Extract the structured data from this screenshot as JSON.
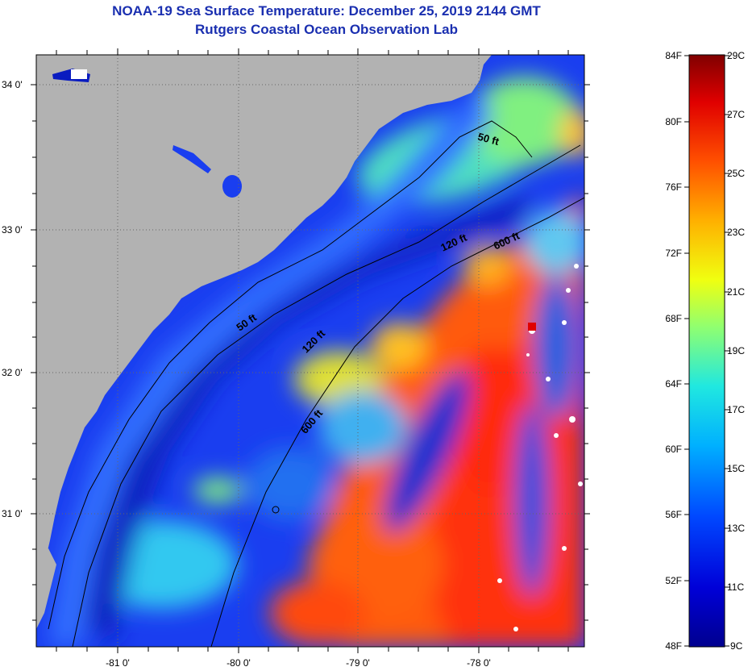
{
  "header": {
    "title": "NOAA-19 Sea Surface Temperature:  December 25, 2019 2144 GMT",
    "subtitle": "Rutgers Coastal Ocean Observation Lab"
  },
  "map": {
    "lat_labels": [
      "34 0'",
      "33 0'",
      "32 0'",
      "31 0'"
    ],
    "lon_labels": [
      "-81 0'",
      "-80 0'",
      "-79 0'",
      "-78 0'"
    ],
    "contours": [
      "50 ft",
      "120 ft",
      "600 ft",
      "50 ft",
      "120 ft",
      "600 ft"
    ],
    "land_color": "#b2b2b2"
  },
  "colorbar": {
    "f_labels": [
      "84F",
      "80F",
      "76F",
      "72F",
      "68F",
      "64F",
      "60F",
      "56F",
      "52F",
      "48F"
    ],
    "c_labels": [
      "29C",
      "27C",
      "25C",
      "23C",
      "21C",
      "19C",
      "17C",
      "15C",
      "13C",
      "11C",
      "9C"
    ]
  }
}
